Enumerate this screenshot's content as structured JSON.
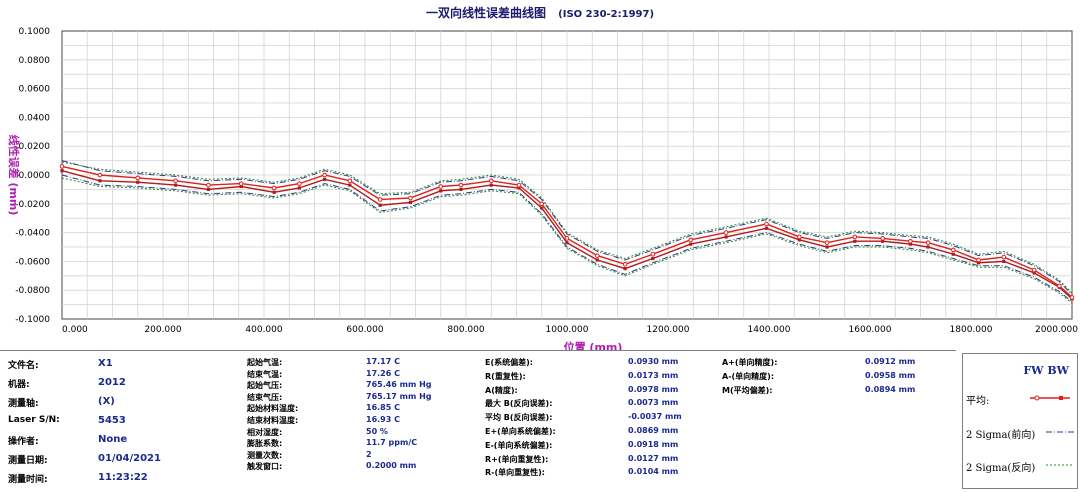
{
  "chart_data": {
    "type": "line",
    "title": "一双向线性误差曲线图",
    "title_suffix": "(ISO 230-2:1997)",
    "xlabel": "位置 (mm)",
    "ylabel": "线性误差 (mm)",
    "xlim": [
      0,
      2000
    ],
    "ylim": [
      -0.1,
      0.1
    ],
    "x_ticks": [
      "0.000",
      "200.000",
      "400.000",
      "600.000",
      "800.000",
      "1000.000",
      "1200.000",
      "1400.000",
      "1600.000",
      "1800.000",
      "2000.000"
    ],
    "y_ticks": [
      "0.1000",
      "0.0800",
      "0.0600",
      "0.0400",
      "0.0200",
      "0.0000",
      "-0.0200",
      "-0.0400",
      "-0.0600",
      "-0.0800",
      "-0.1000"
    ],
    "x": [
      0,
      75,
      150,
      225,
      290,
      355,
      420,
      470,
      520,
      570,
      630,
      690,
      750,
      790,
      850,
      905,
      950,
      1000,
      1060,
      1115,
      1170,
      1245,
      1315,
      1395,
      1460,
      1515,
      1570,
      1625,
      1680,
      1715,
      1765,
      1815,
      1865,
      1925,
      1975,
      2000
    ],
    "grid": true,
    "series": [
      {
        "name": "平均 前向",
        "color": "#e0201a",
        "values": [
          0.006,
          0.0,
          -0.002,
          -0.004,
          -0.007,
          -0.006,
          -0.009,
          -0.006,
          0.0,
          -0.004,
          -0.017,
          -0.016,
          -0.008,
          -0.007,
          -0.004,
          -0.007,
          -0.02,
          -0.044,
          -0.056,
          -0.062,
          -0.055,
          -0.045,
          -0.04,
          -0.034,
          -0.043,
          -0.047,
          -0.043,
          -0.044,
          -0.046,
          -0.047,
          -0.052,
          -0.059,
          -0.057,
          -0.066,
          -0.077,
          -0.085
        ]
      },
      {
        "name": "平均 反向",
        "color": "#b01a1a",
        "values": [
          0.003,
          -0.004,
          -0.005,
          -0.007,
          -0.01,
          -0.008,
          -0.012,
          -0.009,
          -0.003,
          -0.007,
          -0.021,
          -0.019,
          -0.011,
          -0.01,
          -0.007,
          -0.009,
          -0.023,
          -0.047,
          -0.059,
          -0.065,
          -0.058,
          -0.048,
          -0.043,
          -0.037,
          -0.045,
          -0.05,
          -0.046,
          -0.046,
          -0.048,
          -0.05,
          -0.055,
          -0.061,
          -0.06,
          -0.068,
          -0.078,
          -0.086
        ]
      },
      {
        "name": "2 Sigma(前向) 上",
        "color": "#2a3a8a",
        "dash": "6,2,1,2",
        "values": [
          0.01,
          0.003,
          0.001,
          -0.001,
          -0.004,
          -0.003,
          -0.006,
          -0.003,
          0.003,
          -0.001,
          -0.014,
          -0.013,
          -0.005,
          -0.004,
          -0.001,
          -0.004,
          -0.017,
          -0.041,
          -0.053,
          -0.059,
          -0.052,
          -0.042,
          -0.037,
          -0.031,
          -0.04,
          -0.044,
          -0.04,
          -0.041,
          -0.043,
          -0.044,
          -0.049,
          -0.056,
          -0.054,
          -0.063,
          -0.074,
          -0.083
        ]
      },
      {
        "name": "2 Sigma(前向) 下",
        "color": "#2a3a8a",
        "dash": "6,2,1,2",
        "values": [
          0.0,
          -0.007,
          -0.008,
          -0.01,
          -0.013,
          -0.012,
          -0.015,
          -0.012,
          -0.006,
          -0.01,
          -0.025,
          -0.022,
          -0.014,
          -0.013,
          -0.01,
          -0.012,
          -0.027,
          -0.05,
          -0.062,
          -0.069,
          -0.061,
          -0.051,
          -0.046,
          -0.04,
          -0.048,
          -0.053,
          -0.049,
          -0.049,
          -0.051,
          -0.053,
          -0.058,
          -0.063,
          -0.063,
          -0.071,
          -0.081,
          -0.088
        ]
      },
      {
        "name": "2 Sigma(反向) 上",
        "color": "#2a8a2a",
        "dash": "2,2",
        "values": [
          0.009,
          0.004,
          0.002,
          0.0,
          -0.003,
          -0.002,
          -0.005,
          -0.002,
          0.004,
          0.0,
          -0.013,
          -0.012,
          -0.004,
          -0.003,
          0.0,
          -0.003,
          -0.016,
          -0.04,
          -0.052,
          -0.058,
          -0.051,
          -0.041,
          -0.036,
          -0.03,
          -0.039,
          -0.043,
          -0.039,
          -0.04,
          -0.042,
          -0.043,
          -0.048,
          -0.055,
          -0.053,
          -0.062,
          -0.073,
          -0.082
        ]
      },
      {
        "name": "2 Sigma(反向) 下",
        "color": "#2a8a2a",
        "dash": "2,2",
        "values": [
          -0.002,
          -0.008,
          -0.009,
          -0.011,
          -0.014,
          -0.013,
          -0.016,
          -0.013,
          -0.007,
          -0.011,
          -0.026,
          -0.023,
          -0.015,
          -0.014,
          -0.011,
          -0.013,
          -0.028,
          -0.051,
          -0.063,
          -0.07,
          -0.062,
          -0.052,
          -0.047,
          -0.041,
          -0.049,
          -0.054,
          -0.05,
          -0.05,
          -0.052,
          -0.054,
          -0.059,
          -0.064,
          -0.064,
          -0.072,
          -0.082,
          -0.089
        ]
      }
    ]
  },
  "info": {
    "col1": [
      {
        "label": "文件名:",
        "value": "X1"
      },
      {
        "label": "机器:",
        "value": "2012"
      },
      {
        "label": "测量轴:",
        "value": "(X)"
      },
      {
        "label": "Laser S/N:",
        "value": "5453"
      },
      {
        "label": "操作者:",
        "value": "None"
      },
      {
        "label": "测量日期:",
        "value": "01/04/2021"
      },
      {
        "label": "测量时间:",
        "value": "11:23:22"
      }
    ],
    "col2": [
      {
        "label": "起始气温:",
        "value": "17.17 C"
      },
      {
        "label": "结束气温:",
        "value": "17.26 C"
      },
      {
        "label": "起始气压:",
        "value": "765.46 mm Hg"
      },
      {
        "label": "结束气压:",
        "value": "765.17 mm Hg"
      },
      {
        "label": "起始材料温度:",
        "value": "16.85 C"
      },
      {
        "label": "结束材料温度:",
        "value": "16.93 C"
      },
      {
        "label": "相对湿度:",
        "value": "50 %"
      },
      {
        "label": "膨胀系数:",
        "value": "11.7 ppm/C"
      },
      {
        "label": "测量次数:",
        "value": "2"
      },
      {
        "label": "触发窗口:",
        "value": "0.2000 mm"
      }
    ],
    "col3": [
      {
        "label": "E(系统偏差):",
        "value": "0.0930 mm"
      },
      {
        "label": "R(重复性):",
        "value": "0.0173 mm"
      },
      {
        "label": "A(精度):",
        "value": "0.0978 mm"
      },
      {
        "label": "最大 B(反向误差):",
        "value": "0.0073 mm"
      },
      {
        "label": "平均 B(反向误差):",
        "value": "-0.0037 mm"
      },
      {
        "label": "E+(单向系统偏差):",
        "value": "0.0869 mm"
      },
      {
        "label": "E-(单向系统偏差):",
        "value": "0.0918 mm"
      },
      {
        "label": "R+(单向重复性):",
        "value": "0.0127 mm"
      },
      {
        "label": "R-(单向重复性):",
        "value": "0.0104 mm"
      }
    ],
    "col4": [
      {
        "label": "A+(单向精度):",
        "value": "0.0912 mm"
      },
      {
        "label": "A-(单向精度):",
        "value": "0.0958 mm"
      },
      {
        "label": "M(平均偏差):",
        "value": "0.0894 mm"
      }
    ]
  },
  "legend": {
    "header": "FW BW",
    "items": [
      {
        "label": "平均:",
        "color": "#e0201a",
        "icon": "marker-line"
      },
      {
        "label": "2 Sigma(前向)",
        "color": "#2a3a8a",
        "icon": "dash-dot-line"
      },
      {
        "label": "2 Sigma(反向)",
        "color": "#2a8a2a",
        "icon": "dotted-line"
      }
    ]
  }
}
